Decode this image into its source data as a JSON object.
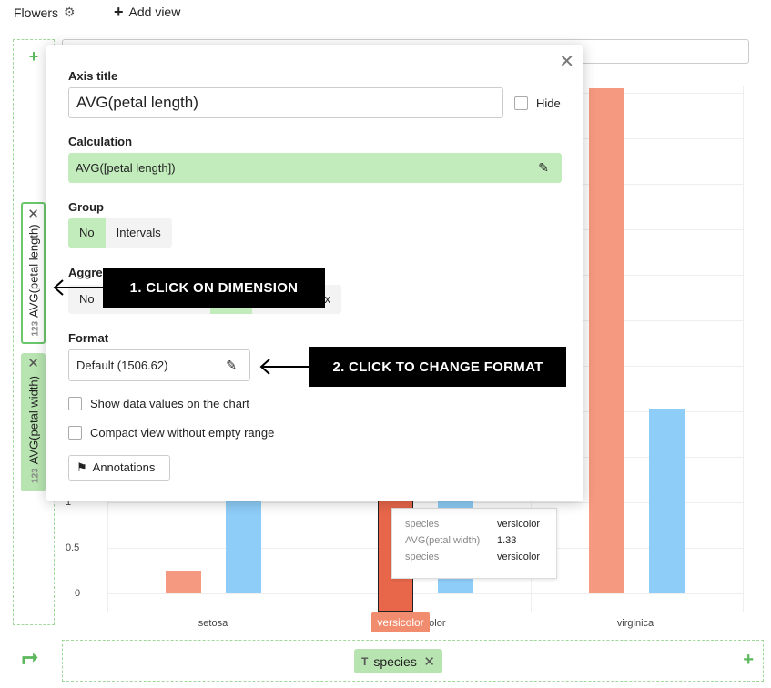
{
  "header": {
    "title": "Flowers",
    "add_view_label": "Add view"
  },
  "y_axis_pills": [
    {
      "type_badge": "123",
      "label": "AVG(petal length)"
    },
    {
      "type_badge": "123",
      "label": "AVG(petal width)"
    }
  ],
  "x_axis_pill": {
    "type_badge": "T",
    "label": "species"
  },
  "chart_data": {
    "type": "bar",
    "categories": [
      "setosa",
      "versicolor",
      "virginica"
    ],
    "series": [
      {
        "name": "AVG(petal length)",
        "color": "#f59a80",
        "values": [
          0.25,
          4.26,
          5.55
        ]
      },
      {
        "name": "AVG(petal width)",
        "color": "#8ecdf8",
        "values": [
          1.46,
          1.33,
          2.03
        ]
      }
    ],
    "visible_y_ticks": [
      "1",
      "0.5",
      "0"
    ],
    "highlighted_category": "versicolor"
  },
  "tooltip": {
    "rows": [
      {
        "key": "species",
        "value": "versicolor"
      },
      {
        "key": "AVG(petal width)",
        "value": "1.33"
      },
      {
        "key": "species",
        "value": "versicolor"
      }
    ]
  },
  "dialog": {
    "axis_title_label": "Axis title",
    "axis_title_value": "AVG(petal length)",
    "hide_label": "Hide",
    "calculation_label": "Calculation",
    "calculation_value": "AVG([petal length])",
    "group_label": "Group",
    "group_options": [
      "No",
      "Intervals"
    ],
    "group_selected": "No",
    "aggregation_label_partial": "Aggre",
    "aggregation_first_option": "No",
    "aggregation_partial_option": "x",
    "format_label": "Format",
    "format_value": "Default (1506.62)",
    "show_values_label": "Show data values on the chart",
    "compact_label": "Compact view without empty range",
    "annotations_label": "Annotations"
  },
  "callouts": {
    "step1": "1. CLICK ON DIMENSION",
    "step2": "2. CLICK TO CHANGE FORMAT"
  },
  "colors": {
    "accent_green": "#5cb85c",
    "pill_green": "#b7e4b0",
    "highlight_orange": "#e8674a"
  }
}
